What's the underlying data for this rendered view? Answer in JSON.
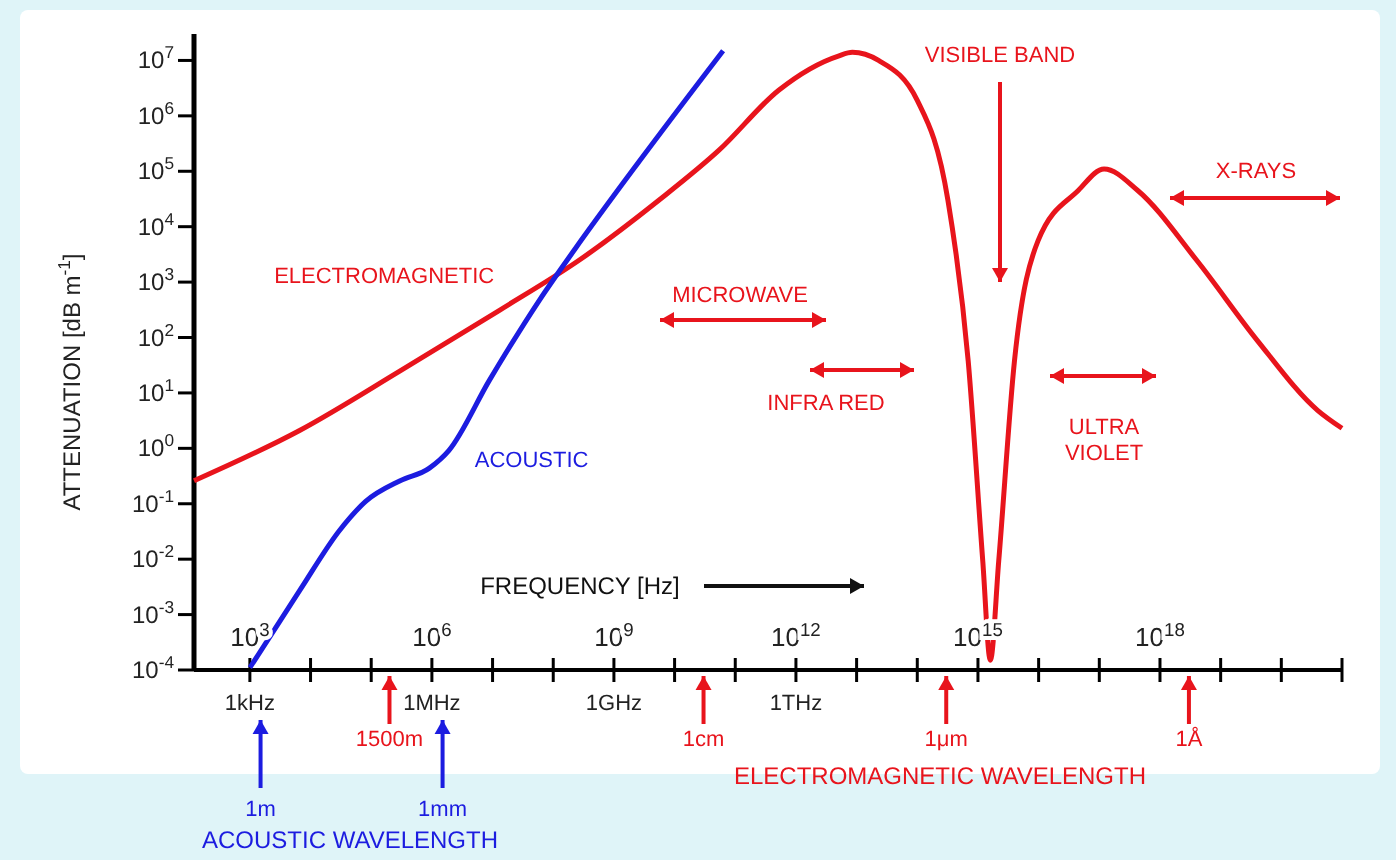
{
  "chart_data": {
    "type": "line",
    "xlabel": "FREQUENCY [Hz]",
    "ylabel": "ATTENUATION [dB m$^{-1}$]",
    "log": "xy",
    "xlim": [
      120,
      1e+21
    ],
    "ylim": [
      0.0001,
      30000000
    ],
    "xticks": [
      {
        "value": 1000,
        "label": "10$^{3}$"
      },
      {
        "value": 10000.0,
        "label": null
      },
      {
        "value": 100000.0,
        "label": null
      },
      {
        "value": 1000000.0,
        "label": "10$^{6}$"
      },
      {
        "value": 10000000.0,
        "label": null
      },
      {
        "value": 100000000.0,
        "label": null
      },
      {
        "value": 1000000000.0,
        "label": "10$^{9}$"
      },
      {
        "value": 10000000000.0,
        "label": null
      },
      {
        "value": 100000000000.0,
        "label": null
      },
      {
        "value": 1000000000000.0,
        "label": "10$^{12}$"
      },
      {
        "value": 10000000000000.0,
        "label": null
      },
      {
        "value": 100000000000000.0,
        "label": null
      },
      {
        "value": 1000000000000000.0,
        "label": "10$^{15}$"
      },
      {
        "value": 1e+16,
        "label": null
      },
      {
        "value": 1e+17,
        "label": null
      },
      {
        "value": 1e+18,
        "label": "10$^{18}$"
      },
      {
        "value": 1e+19,
        "label": null
      },
      {
        "value": 1e+20,
        "label": null
      },
      {
        "value": 1e+21,
        "label": null
      }
    ],
    "yticks": [
      {
        "value": 0.0001,
        "label": "10$^{-4}$"
      },
      {
        "value": 0.001,
        "label": "10$^{-3}$"
      },
      {
        "value": 0.01,
        "label": "10$^{-2}$"
      },
      {
        "value": 0.1,
        "label": "10$^{-1}$"
      },
      {
        "value": 1,
        "label": "10$^{0}$"
      },
      {
        "value": 10,
        "label": "10$^{1}$"
      },
      {
        "value": 100,
        "label": "10$^{2}$"
      },
      {
        "value": 1000,
        "label": "10$^{3}$"
      },
      {
        "value": 10000,
        "label": "10$^{4}$"
      },
      {
        "value": 100000,
        "label": "10$^{5}$"
      },
      {
        "value": 1000000,
        "label": "10$^{6}$"
      },
      {
        "value": 10000000,
        "label": "10$^{7}$"
      }
    ],
    "series": [
      {
        "name": "ELECTROMAGNETIC",
        "color": "#e8141c",
        "x": [
          120,
          6600,
          300000,
          13000000,
          270000000,
          5500000000,
          54000000000,
          520000000000,
          5000000000000.0,
          8500000000000.0,
          23000000000000.0,
          100000000000000.0,
          320000000000000.0,
          690000000000000.0,
          1200000000000000.0,
          1600000000000000.0,
          2200000000000000.0,
          4000000000000000.0,
          9800000000000000.0,
          4.5e+16,
          1.2e+17,
          4.3e+17,
          4e+18,
          4e+19,
          4e+20,
          1e+21
        ],
        "values": [
          0.26,
          2.1,
          25,
          310,
          2500,
          30000,
          240000,
          2900000,
          12000000,
          14000000,
          10000000,
          1900000,
          30000,
          38,
          0.0093,
          0.00015,
          0.0093,
          38,
          5600,
          45000,
          110000,
          45000,
          2500,
          89,
          4.8,
          2.3
        ]
      },
      {
        "name": "ACOUSTIC",
        "color": "#1c1ce0",
        "x": [
          1000,
          6600,
          30000,
          81000,
          300000,
          910000,
          1900000,
          8900000,
          59000000,
          230000000,
          2600000000,
          63000000000
        ],
        "values": [
          0.00011,
          0.0027,
          0.033,
          0.11,
          0.26,
          0.44,
          0.91,
          17,
          470,
          4000,
          150000,
          15000000
        ]
      }
    ],
    "ref_lines": [
      {
        "axis": "x",
        "value": 1500,
        "label": "1m",
        "color": "#1c1ce0"
      },
      {
        "axis": "x",
        "value": 200000,
        "label": "1500m",
        "color": "#e8141c"
      },
      {
        "axis": "x",
        "value": 1500000,
        "label": "1mm",
        "color": "#1c1ce0"
      },
      {
        "axis": "x",
        "value": 30000000000,
        "label": "1cm",
        "color": "#e8141c"
      },
      {
        "axis": "x",
        "value": 300000000000000,
        "label": "1μm",
        "color": "#e8141c"
      },
      {
        "axis": "x",
        "value": 3e+18,
        "label": "1Å",
        "color": "#e8141c"
      }
    ],
    "annotations": [
      "MICROWAVE",
      "INFRA RED",
      "ULTRA VIOLET",
      "X-RAYS",
      "VISIBLE BAND",
      "1kHz",
      "1MHz",
      "1GHz",
      "1THz",
      "ACOUSTIC WAVELENGTH",
      "ELECTROMAGNETIC WAVELENGTH"
    ]
  }
}
